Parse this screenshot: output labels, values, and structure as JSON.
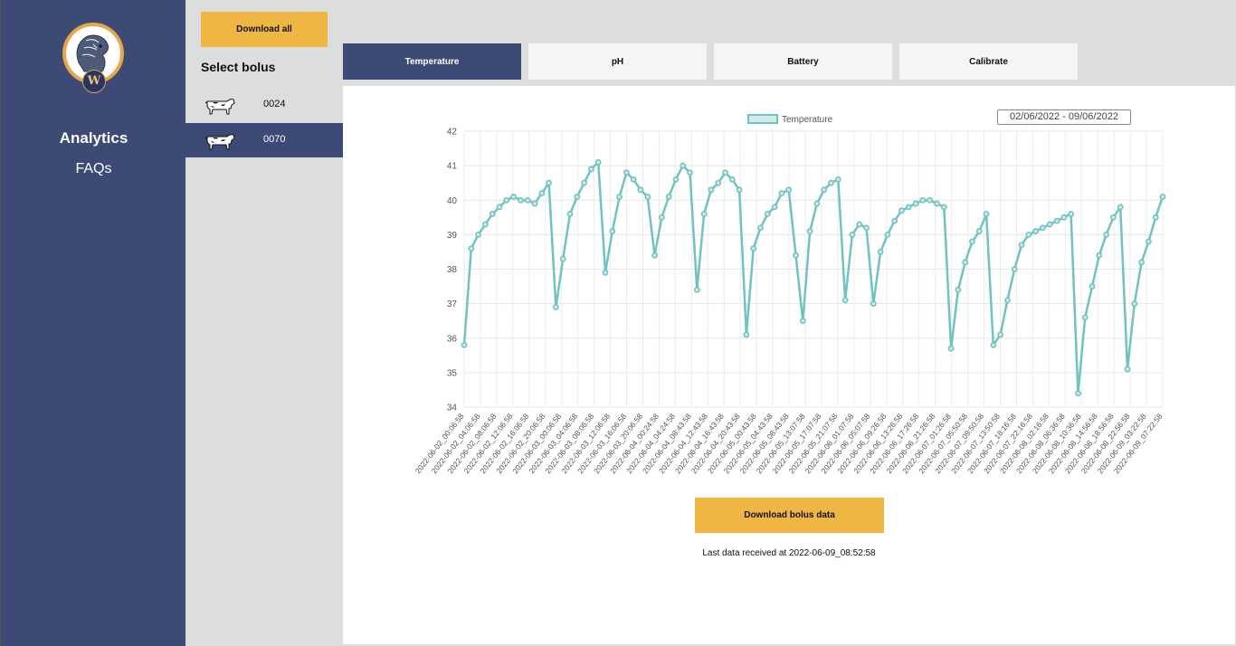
{
  "nav": {
    "logo_letter": "W",
    "items": [
      {
        "label": "Analytics"
      },
      {
        "label": "FAQs"
      }
    ]
  },
  "sidebar": {
    "download_all_label": "Download all",
    "select_title": "Select bolus",
    "boluses": [
      {
        "label": "0024",
        "selected": false
      },
      {
        "label": "0070",
        "selected": true
      }
    ]
  },
  "tabs": [
    {
      "label": "Temperature",
      "active": true
    },
    {
      "label": "pH",
      "active": false
    },
    {
      "label": "Battery",
      "active": false
    },
    {
      "label": "Calibrate",
      "active": false
    }
  ],
  "date_range": "02/06/2022 - 09/06/2022",
  "download_bolus_label": "Download bolus data",
  "last_data_text": "Last data received at 2022-06-09_08:52:58",
  "colors": {
    "nav_bg": "#3c4a75",
    "accent_yellow": "#efb643",
    "series_line": "#72c3c0",
    "series_fill": "#cdeceb"
  },
  "chart_data": {
    "type": "line",
    "title": "",
    "xlabel": "",
    "ylabel": "",
    "ylim": [
      34,
      42
    ],
    "yticks": [
      34,
      35,
      36,
      37,
      38,
      39,
      40,
      41,
      42
    ],
    "legend": {
      "position": "top-center",
      "entries": [
        "Temperature"
      ]
    },
    "grid": true,
    "x_tick_labels": [
      "2022-06-02_00:06:58",
      "2022-06-02_04:06:58",
      "2022-06-02_08:06:58",
      "2022-06-02_12:06:58",
      "2022-06-02_16:06:58",
      "2022-06-02_20:06:58",
      "2022-06-03_00:06:58",
      "2022-06-03_04:06:58",
      "2022-06-03_08:06:58",
      "2022-06-03_12:06:58",
      "2022-06-03_16:06:58",
      "2022-06-03_20:06:58",
      "2022-06-04_00:24:58",
      "2022-06-04_04:24:58",
      "2022-06-04_08:43:58",
      "2022-06-04_12:43:58",
      "2022-06-04_16:43:58",
      "2022-06-04_20:43:58",
      "2022-06-05_00:43:58",
      "2022-06-05_04:43:58",
      "2022-06-05_08:43:58",
      "2022-06-05_13:07:58",
      "2022-06-05_17:07:58",
      "2022-06-05_21:07:58",
      "2022-06-06_01:07:58",
      "2022-06-06_05:07:58",
      "2022-06-06_09:26:58",
      "2022-06-06_13:26:58",
      "2022-06-06_17:26:58",
      "2022-06-06_21:26:58",
      "2022-06-07_01:26:58",
      "2022-06-07_05:50:58",
      "2022-06-07_09:50:58",
      "2022-06-07_13:50:58",
      "2022-06-07_18:16:58",
      "2022-06-07_22:16:58",
      "2022-06-08_02:16:58",
      "2022-06-08_06:36:58",
      "2022-06-08_10:36:58",
      "2022-06-08_14:56:58",
      "2022-06-08_18:56:58",
      "2022-06-08_22:56:58",
      "2022-06-09_03:22:58",
      "2022-06-09_07:22:58"
    ],
    "series": [
      {
        "name": "Temperature",
        "values": [
          35.8,
          38.6,
          39.0,
          39.3,
          39.6,
          39.8,
          40.0,
          40.1,
          40.0,
          40.0,
          39.9,
          40.2,
          40.5,
          36.9,
          38.3,
          39.6,
          40.1,
          40.5,
          40.9,
          41.1,
          37.9,
          39.1,
          40.1,
          40.8,
          40.6,
          40.3,
          40.1,
          38.4,
          39.5,
          40.1,
          40.6,
          41.0,
          40.8,
          37.4,
          39.6,
          40.3,
          40.5,
          40.8,
          40.6,
          40.3,
          36.1,
          38.6,
          39.2,
          39.6,
          39.8,
          40.2,
          40.3,
          38.4,
          36.5,
          39.1,
          39.9,
          40.3,
          40.5,
          40.6,
          37.1,
          39.0,
          39.3,
          39.2,
          37.0,
          38.5,
          39.0,
          39.4,
          39.7,
          39.8,
          39.9,
          40.0,
          40.0,
          39.9,
          39.8,
          35.7,
          37.4,
          38.2,
          38.8,
          39.1,
          39.6,
          35.8,
          36.1,
          37.1,
          38.0,
          38.7,
          39.0,
          39.1,
          39.2,
          39.3,
          39.4,
          39.5,
          39.6,
          34.4,
          36.6,
          37.5,
          38.4,
          39.0,
          39.5,
          39.8,
          35.1,
          37.0,
          38.2,
          38.8,
          39.5,
          40.1
        ]
      }
    ]
  }
}
